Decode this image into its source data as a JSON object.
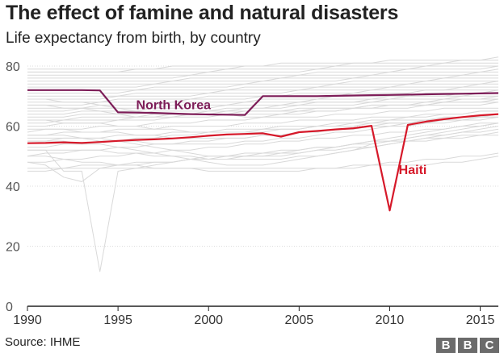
{
  "header": {
    "title": "The effect of famine and natural disasters",
    "subtitle": "Life expectancy from birth, by country"
  },
  "footer": {
    "source": "Source: IHME",
    "logo_letters": [
      "B",
      "B",
      "C"
    ]
  },
  "colors": {
    "north_korea": "#7d1d58",
    "haiti": "#d6192a",
    "background_lines": "#d9d9d9",
    "grid": "#dddddd",
    "axis": "#222222"
  },
  "chart_data": {
    "type": "line",
    "title": "The effect of famine and natural disasters",
    "subtitle": "Life expectancy from birth, by country",
    "xlabel": "",
    "ylabel": "",
    "xlim": [
      1990,
      2016
    ],
    "ylim": [
      0,
      80
    ],
    "x_ticks": [
      1990,
      1995,
      2000,
      2005,
      2010,
      2015
    ],
    "y_ticks": [
      0,
      20,
      40,
      60,
      80
    ],
    "grid": "horizontal dotted",
    "legend": "none (direct labels)",
    "x": [
      1990,
      1991,
      1992,
      1993,
      1994,
      1995,
      1996,
      1997,
      1998,
      1999,
      2000,
      2001,
      2002,
      2003,
      2004,
      2005,
      2006,
      2007,
      2008,
      2009,
      2010,
      2011,
      2012,
      2013,
      2014,
      2015,
      2016
    ],
    "highlighted_series": [
      {
        "name": "North Korea",
        "color": "#7d1d58",
        "values": [
          72.0,
          72.0,
          72.0,
          72.0,
          71.9,
          64.6,
          64.5,
          64.4,
          64.2,
          64.0,
          63.9,
          63.8,
          63.7,
          70.0,
          70.0,
          70.0,
          70.0,
          70.1,
          70.2,
          70.3,
          70.4,
          70.5,
          70.6,
          70.7,
          70.8,
          70.9,
          71.0
        ]
      },
      {
        "name": "Haiti",
        "color": "#d6192a",
        "values": [
          54.3,
          54.4,
          54.6,
          54.4,
          54.7,
          55.1,
          55.4,
          55.6,
          55.9,
          56.3,
          56.8,
          57.2,
          57.4,
          57.6,
          56.5,
          58.0,
          58.4,
          58.9,
          59.3,
          60.1,
          31.9,
          60.4,
          61.5,
          62.3,
          63.0,
          63.6,
          64.0
        ]
      }
    ],
    "background_series": [
      {
        "values": [
          52,
          52,
          45,
          45,
          11.5,
          45,
          46,
          47,
          48,
          49,
          50,
          50,
          51,
          51,
          52,
          52,
          53,
          53,
          54,
          54,
          55,
          55,
          56,
          56,
          57,
          57,
          58
        ]
      },
      {
        "values": [
          48,
          47,
          43,
          41.5,
          46,
          46,
          46,
          46,
          46,
          46,
          46,
          46,
          46,
          46,
          46,
          46,
          46,
          46,
          46,
          47,
          47,
          47,
          47,
          48,
          48,
          49,
          50
        ]
      },
      {
        "values": [
          50,
          50,
          49,
          48,
          48,
          47,
          47,
          46,
          46,
          46,
          45,
          45,
          45,
          45,
          45,
          45,
          46,
          46,
          47,
          47,
          48,
          48,
          49,
          49,
          50,
          50,
          51
        ]
      },
      {
        "values": [
          46,
          46,
          46,
          47,
          47,
          47,
          48,
          48,
          48,
          49,
          49,
          49,
          50,
          50,
          51,
          51,
          52,
          52,
          53,
          53,
          54,
          55,
          55,
          56,
          56,
          57,
          57
        ]
      },
      {
        "values": [
          45,
          45,
          46,
          46,
          46,
          47,
          47,
          48,
          48,
          49,
          49,
          50,
          50,
          51,
          51,
          52,
          53,
          53,
          54,
          55,
          55,
          56,
          57,
          57,
          58,
          58,
          59
        ]
      },
      {
        "values": [
          55,
          55,
          55,
          54,
          54,
          53,
          52,
          51,
          50,
          49,
          48,
          47,
          47,
          47,
          48,
          49,
          50,
          51,
          52,
          54,
          55,
          56,
          57,
          58,
          59,
          60,
          61
        ]
      },
      {
        "values": [
          52,
          52,
          52,
          52,
          52,
          51,
          51,
          50,
          50,
          50,
          49,
          49,
          49,
          49,
          49,
          50,
          50,
          51,
          52,
          53,
          54,
          55,
          56,
          57,
          58,
          59,
          60
        ]
      },
      {
        "values": [
          57,
          57,
          57,
          56,
          56,
          55,
          54,
          53,
          52,
          51,
          50,
          50,
          50,
          50,
          50,
          51,
          52,
          53,
          54,
          55,
          56,
          57,
          58,
          59,
          60,
          61,
          61
        ]
      },
      {
        "values": [
          48,
          48,
          49,
          49,
          50,
          50,
          51,
          51,
          52,
          52,
          53,
          53,
          54,
          54,
          55,
          55,
          56,
          56,
          57,
          57,
          58,
          58,
          59,
          59,
          60,
          60,
          61
        ]
      },
      {
        "values": [
          50,
          51,
          51,
          52,
          52,
          53,
          53,
          54,
          54,
          55,
          55,
          56,
          56,
          57,
          57,
          58,
          58,
          59,
          59,
          60,
          60,
          61,
          61,
          62,
          62,
          63,
          63
        ]
      },
      {
        "values": [
          53,
          53,
          54,
          54,
          55,
          55,
          56,
          56,
          57,
          57,
          58,
          58,
          58,
          59,
          59,
          59,
          60,
          60,
          60,
          61,
          61,
          61,
          62,
          62,
          62,
          63,
          63
        ]
      },
      {
        "values": [
          55,
          55,
          56,
          56,
          56,
          57,
          57,
          57,
          58,
          58,
          58,
          59,
          59,
          59,
          60,
          60,
          60,
          61,
          61,
          61,
          62,
          62,
          62,
          63,
          63,
          63,
          64
        ]
      },
      {
        "values": [
          57,
          57,
          58,
          58,
          58,
          59,
          59,
          59,
          60,
          60,
          60,
          60,
          61,
          61,
          61,
          62,
          62,
          62,
          62,
          63,
          63,
          63,
          64,
          64,
          64,
          65,
          65
        ]
      },
      {
        "values": [
          58,
          59,
          59,
          59,
          60,
          60,
          60,
          61,
          61,
          61,
          62,
          62,
          62,
          63,
          63,
          63,
          63,
          64,
          64,
          64,
          65,
          65,
          65,
          66,
          66,
          66,
          66
        ]
      },
      {
        "values": [
          60,
          60,
          61,
          61,
          61,
          62,
          62,
          62,
          63,
          63,
          63,
          64,
          64,
          64,
          64,
          65,
          65,
          65,
          66,
          66,
          66,
          66,
          67,
          67,
          67,
          67,
          68
        ]
      },
      {
        "values": [
          61,
          61,
          62,
          62,
          62,
          62,
          63,
          63,
          63,
          64,
          64,
          64,
          65,
          65,
          65,
          65,
          66,
          66,
          66,
          67,
          67,
          67,
          67,
          68,
          68,
          68,
          68
        ]
      },
      {
        "values": [
          62,
          62,
          62,
          63,
          63,
          63,
          63,
          64,
          64,
          64,
          64,
          65,
          65,
          65,
          65,
          66,
          66,
          66,
          66,
          67,
          67,
          67,
          67,
          68,
          68,
          68,
          69
        ]
      },
      {
        "values": [
          63,
          63,
          63,
          64,
          64,
          64,
          64,
          65,
          65,
          65,
          65,
          66,
          66,
          66,
          66,
          67,
          67,
          67,
          67,
          68,
          68,
          68,
          68,
          69,
          69,
          69,
          69
        ]
      },
      {
        "values": [
          64,
          64,
          64,
          65,
          65,
          65,
          65,
          66,
          66,
          66,
          66,
          67,
          67,
          67,
          67,
          68,
          68,
          68,
          68,
          68,
          69,
          69,
          69,
          69,
          70,
          70,
          70
        ]
      },
      {
        "values": [
          65,
          65,
          65,
          66,
          66,
          66,
          66,
          66,
          67,
          67,
          67,
          67,
          68,
          68,
          68,
          68,
          69,
          69,
          69,
          69,
          70,
          70,
          70,
          70,
          70,
          71,
          71
        ]
      },
      {
        "values": [
          66,
          66,
          66,
          66,
          67,
          67,
          67,
          67,
          68,
          68,
          68,
          68,
          68,
          69,
          69,
          69,
          69,
          70,
          70,
          70,
          70,
          70,
          71,
          71,
          71,
          71,
          72
        ]
      },
      {
        "values": [
          67,
          67,
          67,
          67,
          68,
          68,
          68,
          68,
          68,
          69,
          69,
          69,
          69,
          70,
          70,
          70,
          70,
          70,
          71,
          71,
          71,
          71,
          72,
          72,
          72,
          72,
          72
        ]
      },
      {
        "values": [
          68,
          68,
          68,
          68,
          68,
          69,
          69,
          69,
          69,
          69,
          70,
          70,
          70,
          70,
          70,
          71,
          71,
          71,
          71,
          72,
          72,
          72,
          72,
          72,
          73,
          73,
          73
        ]
      },
      {
        "values": [
          69,
          69,
          69,
          69,
          69,
          70,
          70,
          70,
          70,
          70,
          71,
          71,
          71,
          71,
          71,
          72,
          72,
          72,
          72,
          72,
          73,
          73,
          73,
          73,
          73,
          74,
          74
        ]
      },
      {
        "values": [
          70,
          70,
          70,
          70,
          70,
          70,
          71,
          71,
          71,
          71,
          71,
          72,
          72,
          72,
          72,
          72,
          73,
          73,
          73,
          73,
          73,
          74,
          74,
          74,
          74,
          74,
          75
        ]
      },
      {
        "values": [
          71,
          71,
          71,
          71,
          71,
          71,
          72,
          72,
          72,
          72,
          72,
          72,
          73,
          73,
          73,
          73,
          73,
          74,
          74,
          74,
          74,
          74,
          75,
          75,
          75,
          75,
          75
        ]
      },
      {
        "values": [
          72,
          72,
          72,
          72,
          72,
          72,
          72,
          73,
          73,
          73,
          73,
          73,
          74,
          74,
          74,
          74,
          74,
          74,
          75,
          75,
          75,
          75,
          75,
          76,
          76,
          76,
          76
        ]
      },
      {
        "values": [
          73,
          73,
          73,
          73,
          73,
          73,
          73,
          74,
          74,
          74,
          74,
          74,
          74,
          75,
          75,
          75,
          75,
          75,
          76,
          76,
          76,
          76,
          76,
          76,
          77,
          77,
          77
        ]
      },
      {
        "values": [
          74,
          74,
          74,
          74,
          74,
          74,
          74,
          74,
          75,
          75,
          75,
          75,
          75,
          75,
          76,
          76,
          76,
          76,
          76,
          77,
          77,
          77,
          77,
          77,
          77,
          78,
          78
        ]
      },
      {
        "values": [
          75,
          75,
          75,
          75,
          75,
          75,
          75,
          75,
          75,
          76,
          76,
          76,
          76,
          76,
          76,
          77,
          77,
          77,
          77,
          77,
          78,
          78,
          78,
          78,
          78,
          78,
          79
        ]
      },
      {
        "values": [
          76,
          76,
          76,
          76,
          76,
          76,
          76,
          76,
          76,
          77,
          77,
          77,
          77,
          77,
          77,
          77,
          78,
          78,
          78,
          78,
          78,
          79,
          79,
          79,
          79,
          79,
          80
        ]
      },
      {
        "values": [
          77,
          77,
          77,
          77,
          77,
          77,
          77,
          77,
          77,
          77,
          78,
          78,
          78,
          78,
          78,
          78,
          79,
          79,
          79,
          79,
          79,
          79,
          80,
          80,
          80,
          80,
          80
        ]
      },
      {
        "values": [
          78,
          78,
          78,
          78,
          78,
          78,
          78,
          78,
          78,
          78,
          78,
          79,
          79,
          79,
          79,
          79,
          79,
          80,
          80,
          80,
          80,
          80,
          80,
          81,
          81,
          81,
          81
        ]
      },
      {
        "values": [
          78,
          78,
          78,
          78,
          78,
          78,
          79,
          79,
          79,
          79,
          79,
          79,
          80,
          80,
          80,
          80,
          80,
          80,
          81,
          81,
          81,
          81,
          81,
          81,
          82,
          82,
          82
        ]
      },
      {
        "values": [
          79,
          79,
          79,
          79,
          79,
          79,
          79,
          79,
          80,
          80,
          80,
          80,
          80,
          80,
          81,
          81,
          81,
          81,
          81,
          81,
          82,
          82,
          82,
          82,
          82,
          82,
          83
        ]
      },
      {
        "values": [
          67,
          67,
          66,
          66,
          65,
          64,
          63,
          63,
          64,
          64,
          65,
          65,
          66,
          66,
          67,
          67,
          68,
          68,
          68,
          69,
          69,
          70,
          70,
          70,
          71,
          71,
          71
        ]
      },
      {
        "values": [
          69,
          69,
          68,
          68,
          67,
          66,
          65,
          64,
          64,
          64,
          64,
          64,
          63,
          63,
          64,
          64,
          65,
          65,
          66,
          66,
          67,
          67,
          68,
          68,
          69,
          69,
          70
        ]
      },
      {
        "values": [
          62,
          62,
          61,
          61,
          61,
          60,
          60,
          59,
          59,
          58,
          58,
          58,
          58,
          58,
          59,
          59,
          60,
          60,
          61,
          62,
          62,
          63,
          63,
          64,
          64,
          65,
          65
        ]
      },
      {
        "values": [
          59,
          59,
          59,
          58,
          58,
          58,
          57,
          57,
          56,
          56,
          56,
          56,
          56,
          57,
          57,
          58,
          58,
          59,
          59,
          60,
          61,
          61,
          62,
          62,
          63,
          63,
          64
        ]
      },
      {
        "values": [
          56,
          56,
          56,
          56,
          55,
          55,
          55,
          54,
          54,
          54,
          54,
          54,
          55,
          55,
          56,
          56,
          57,
          58,
          58,
          59,
          60,
          60,
          61,
          61,
          62,
          62,
          63
        ]
      }
    ]
  }
}
